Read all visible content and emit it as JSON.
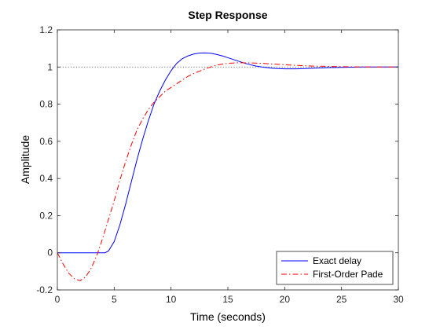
{
  "chart_data": {
    "type": "line",
    "title": "Step Response",
    "xlabel": "Time (seconds)",
    "ylabel": "Amplitude",
    "xlim": [
      0,
      30
    ],
    "ylim": [
      -0.2,
      1.2
    ],
    "xticks": [
      0,
      5,
      10,
      15,
      20,
      25,
      30
    ],
    "xtick_labels": [
      "0",
      "5",
      "10",
      "15",
      "20",
      "25",
      "30"
    ],
    "yticks": [
      -0.2,
      0,
      0.2,
      0.4,
      0.6,
      0.8,
      1,
      1.2
    ],
    "ytick_labels": [
      "-0.2",
      "0",
      "0.2",
      "0.4",
      "0.6",
      "0.8",
      "1",
      "1.2"
    ],
    "grid": false,
    "legend_position": "bottom-right",
    "reference_line": {
      "y": 1,
      "style": "dotted",
      "color": "#444444"
    },
    "series": [
      {
        "name": "Exact delay",
        "color": "#0000ff",
        "dash": "solid",
        "x": [
          0,
          1,
          2,
          3,
          4,
          4.2,
          4.5,
          5,
          5.5,
          6,
          6.5,
          7,
          7.5,
          8,
          8.5,
          9,
          9.5,
          10,
          10.5,
          11,
          11.5,
          12,
          12.5,
          13,
          13.5,
          14,
          14.5,
          15,
          15.5,
          16,
          16.5,
          17,
          17.5,
          18,
          19,
          20,
          21,
          22,
          23,
          24,
          25,
          26,
          27,
          28,
          29,
          30
        ],
        "y": [
          0,
          0,
          0,
          0,
          0,
          0,
          0.01,
          0.06,
          0.15,
          0.26,
          0.38,
          0.5,
          0.61,
          0.71,
          0.8,
          0.87,
          0.93,
          0.98,
          1.02,
          1.045,
          1.06,
          1.07,
          1.075,
          1.076,
          1.074,
          1.068,
          1.06,
          1.05,
          1.04,
          1.03,
          1.02,
          1.012,
          1.005,
          1.0,
          0.993,
          0.99,
          0.99,
          0.992,
          0.995,
          0.997,
          0.998,
          0.999,
          1.0,
          1.0,
          1.0,
          1.0
        ]
      },
      {
        "name": "First-Order Pade",
        "color": "#ff0000",
        "dash": "dashdot",
        "x": [
          0,
          0.5,
          1,
          1.5,
          2,
          2.5,
          3,
          3.5,
          4,
          4.5,
          5,
          5.5,
          6,
          6.5,
          7,
          7.5,
          8,
          8.5,
          9,
          9.5,
          10,
          10.5,
          11,
          11.5,
          12,
          13,
          14,
          15,
          16,
          17,
          18,
          19,
          20,
          21,
          22,
          24,
          26,
          28,
          30
        ],
        "y": [
          0,
          -0.06,
          -0.11,
          -0.14,
          -0.15,
          -0.13,
          -0.08,
          -0.01,
          0.08,
          0.18,
          0.28,
          0.39,
          0.49,
          0.58,
          0.66,
          0.72,
          0.77,
          0.81,
          0.84,
          0.87,
          0.89,
          0.91,
          0.93,
          0.95,
          0.965,
          0.99,
          1.01,
          1.02,
          1.023,
          1.022,
          1.02,
          1.016,
          1.012,
          1.009,
          1.006,
          1.003,
          1.001,
          1.0,
          1.0
        ]
      }
    ]
  }
}
